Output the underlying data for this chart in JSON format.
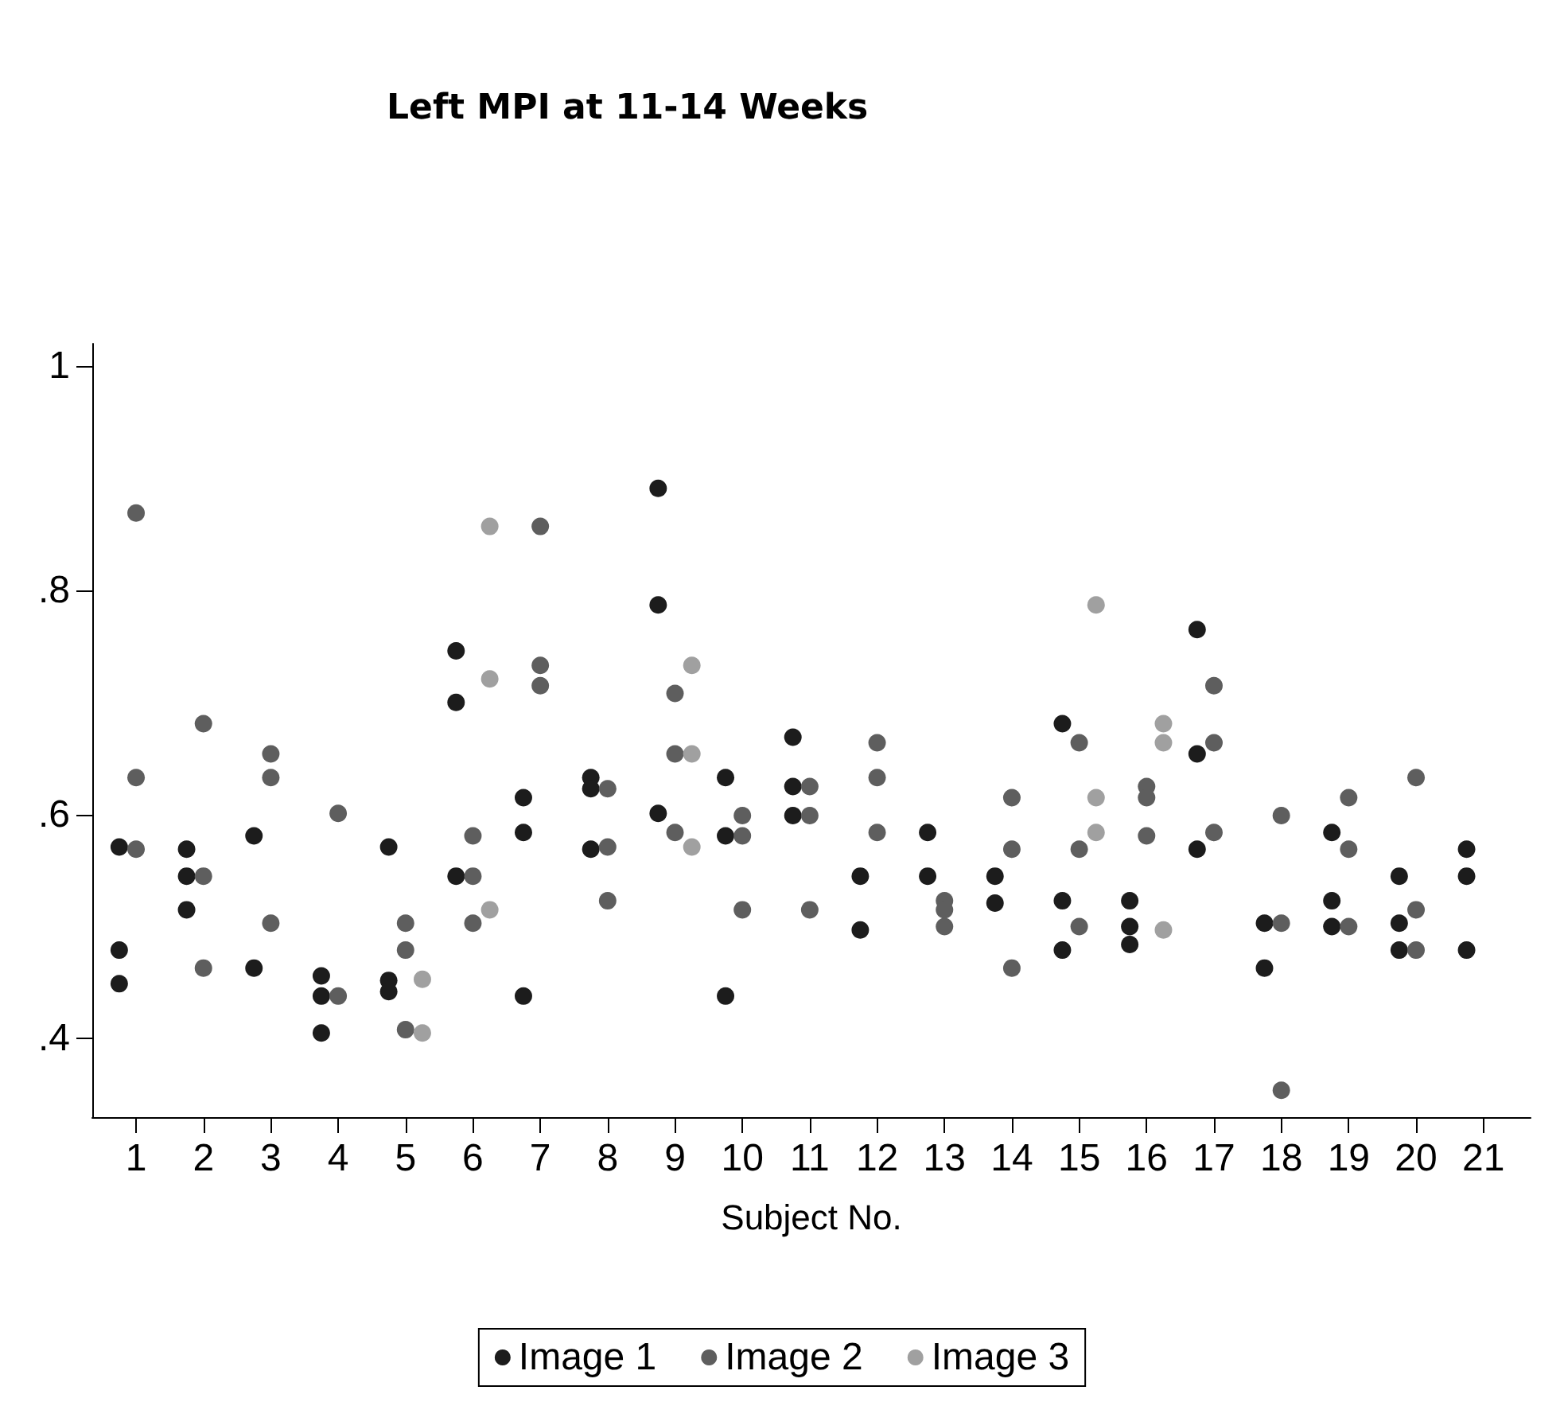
{
  "chart_data": {
    "type": "scatter",
    "title": "Left MPI at 11-14 Weeks",
    "xlabel": "Subject No.",
    "xlim": [
      0.35,
      21.7
    ],
    "xticks": [
      1,
      2,
      3,
      4,
      5,
      6,
      7,
      8,
      9,
      10,
      11,
      12,
      13,
      14,
      15,
      16,
      17,
      18,
      19,
      20,
      21
    ],
    "ylim": [
      0.33,
      1.02
    ],
    "yticks": [
      {
        "value": 0.4,
        "label": ".4"
      },
      {
        "value": 0.6,
        "label": ".6"
      },
      {
        "value": 0.8,
        "label": ".8"
      },
      {
        "value": 1,
        "label": "1"
      }
    ],
    "grid": false,
    "legend": "bottom",
    "marker": "circle",
    "series": [
      {
        "name": "Image 1",
        "color": "#1c1c1c",
        "x": [
          0.75,
          0.75,
          0.75,
          1.75,
          1.75,
          1.75,
          2.75,
          2.75,
          3.75,
          3.75,
          3.75,
          4.75,
          4.75,
          4.75,
          5.75,
          5.75,
          5.75,
          6.75,
          6.75,
          6.75,
          7.75,
          7.75,
          7.75,
          8.75,
          8.75,
          8.75,
          9.75,
          9.75,
          9.75,
          10.75,
          10.75,
          10.75,
          11.75,
          11.75,
          12.75,
          12.75,
          13.75,
          13.75,
          14.75,
          14.75,
          14.75,
          15.75,
          15.75,
          15.75,
          16.75,
          16.75,
          16.75,
          17.75,
          17.75,
          18.75,
          18.75,
          18.75,
          19.75,
          19.75,
          19.75,
          20.75,
          20.75,
          20.75
        ],
        "values": [
          0.571,
          0.479,
          0.449,
          0.569,
          0.545,
          0.515,
          0.581,
          0.463,
          0.456,
          0.438,
          0.405,
          0.571,
          0.452,
          0.442,
          0.746,
          0.7,
          0.545,
          0.615,
          0.584,
          0.438,
          0.633,
          0.623,
          0.569,
          0.891,
          0.787,
          0.601,
          0.633,
          0.581,
          0.438,
          0.669,
          0.625,
          0.599,
          0.545,
          0.497,
          0.584,
          0.545,
          0.545,
          0.521,
          0.681,
          0.523,
          0.479,
          0.523,
          0.5,
          0.484,
          0.765,
          0.654,
          0.569,
          0.503,
          0.463,
          0.584,
          0.523,
          0.5,
          0.545,
          0.503,
          0.479,
          0.569,
          0.545,
          0.479
        ]
      },
      {
        "name": "Image 2",
        "color": "#5e5e5e",
        "x": [
          1,
          1,
          1,
          2,
          2,
          2,
          3,
          3,
          3,
          4,
          4,
          5,
          5,
          5,
          6,
          6,
          6,
          7,
          7,
          7,
          8,
          8,
          8,
          9,
          9,
          9,
          10,
          10,
          10,
          11,
          11,
          11,
          12,
          12,
          12,
          13,
          13,
          13,
          14,
          14,
          14,
          15,
          15,
          15,
          16,
          16,
          16,
          17,
          17,
          17,
          18,
          18,
          18,
          19,
          19,
          19,
          20,
          20,
          20
        ],
        "values": [
          0.869,
          0.633,
          0.569,
          0.681,
          0.545,
          0.463,
          0.654,
          0.633,
          0.503,
          0.601,
          0.438,
          0.503,
          0.479,
          0.408,
          0.581,
          0.545,
          0.503,
          0.857,
          0.733,
          0.715,
          0.623,
          0.571,
          0.523,
          0.708,
          0.654,
          0.584,
          0.599,
          0.581,
          0.515,
          0.625,
          0.599,
          0.515,
          0.664,
          0.633,
          0.584,
          0.523,
          0.515,
          0.5,
          0.615,
          0.569,
          0.463,
          0.664,
          0.569,
          0.5,
          0.625,
          0.615,
          0.581,
          0.715,
          0.664,
          0.584,
          0.599,
          0.503,
          0.354,
          0.615,
          0.569,
          0.5,
          0.633,
          0.515,
          0.479
        ]
      },
      {
        "name": "Image 3",
        "color": "#a0a0a0",
        "x": [
          5.25,
          5.25,
          6.25,
          6.25,
          6.25,
          9.25,
          9.25,
          9.25,
          15.25,
          15.25,
          15.25,
          16.25,
          16.25,
          16.25
        ],
        "values": [
          0.453,
          0.405,
          0.857,
          0.721,
          0.515,
          0.733,
          0.654,
          0.571,
          0.787,
          0.615,
          0.584,
          0.681,
          0.664,
          0.497
        ]
      }
    ]
  }
}
